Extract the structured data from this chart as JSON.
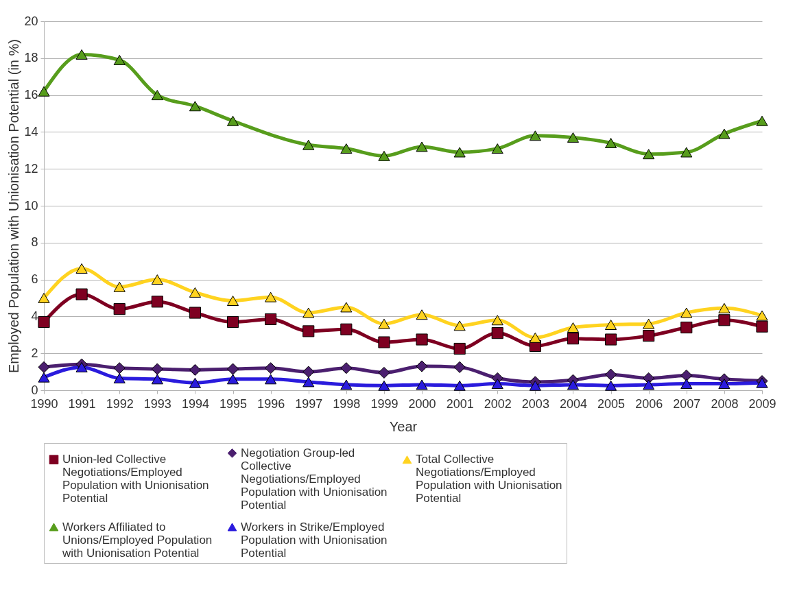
{
  "chart_data": {
    "type": "line",
    "xlabel": "Year",
    "ylabel": "Employed Population with Unionisation Potential (in %)",
    "categories": [
      "1990",
      "1991",
      "1992",
      "1993",
      "1994",
      "1995",
      "1996",
      "1997",
      "1998",
      "1999",
      "2000",
      "2001",
      "2002",
      "2003",
      "2004",
      "2005",
      "2006",
      "2007",
      "2008",
      "2009"
    ],
    "ylim": [
      0,
      20
    ],
    "yticks": [
      0,
      2,
      4,
      6,
      8,
      10,
      12,
      14,
      16,
      18,
      20
    ],
    "grid": "y",
    "legend": "bottom",
    "series": [
      {
        "name": "Union-led Collective Negotiations/Employed Population with Unionisation Potential",
        "color": "#7e0021",
        "marker": "square",
        "values": [
          3.7,
          5.2,
          4.4,
          4.8,
          4.2,
          3.7,
          3.85,
          3.2,
          3.3,
          2.6,
          2.75,
          2.25,
          3.1,
          2.4,
          2.8,
          2.75,
          2.95,
          3.4,
          3.8,
          3.45
        ]
      },
      {
        "name": "Negotiation Group-led Collective Negotiations/Employed Population with Unionisation Potential",
        "color": "#4b1f6f",
        "marker": "diamond",
        "values": [
          1.25,
          1.4,
          1.2,
          1.15,
          1.1,
          1.15,
          1.2,
          1.0,
          1.2,
          0.95,
          1.3,
          1.25,
          0.65,
          0.45,
          0.55,
          0.85,
          0.65,
          0.8,
          0.6,
          0.5
        ]
      },
      {
        "name": "Total Collective Negotiations/Employed Population with Unionisation Potential",
        "color": "#ffd320",
        "marker": "triangle",
        "values": [
          5.0,
          6.6,
          5.6,
          6.0,
          5.3,
          4.85,
          5.05,
          4.2,
          4.5,
          3.6,
          4.1,
          3.5,
          3.8,
          2.85,
          3.4,
          3.55,
          3.6,
          4.2,
          4.45,
          4.05
        ]
      },
      {
        "name": "Workers Affiliated to Unions/Employed Population with Unionisation Potential",
        "color": "#579d1c",
        "marker": "triangle",
        "values": [
          16.2,
          18.2,
          17.9,
          16.0,
          15.4,
          14.6,
          null,
          13.3,
          13.1,
          12.7,
          13.2,
          12.9,
          13.1,
          13.8,
          13.7,
          13.4,
          12.8,
          12.9,
          13.9,
          14.6
        ]
      },
      {
        "name": "Workers in Strike/Employed Population with Unionisation Potential",
        "color": "#2a1bdd",
        "marker": "triangle",
        "values": [
          0.7,
          1.25,
          0.65,
          0.6,
          0.4,
          0.6,
          0.6,
          0.45,
          0.3,
          0.25,
          0.3,
          0.25,
          0.35,
          0.25,
          0.3,
          0.25,
          0.3,
          0.35,
          0.35,
          0.4
        ]
      }
    ]
  }
}
